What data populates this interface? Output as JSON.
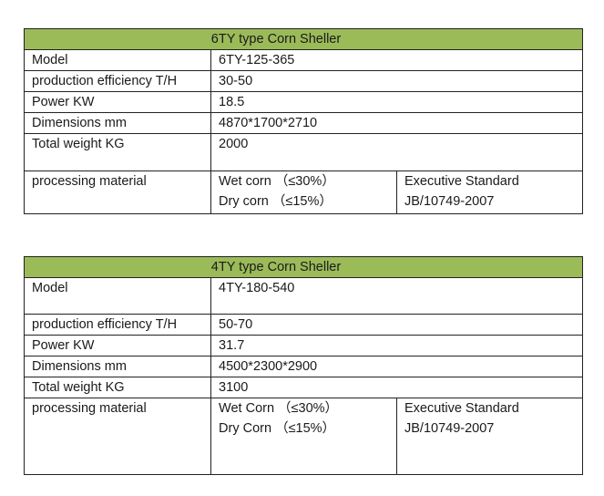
{
  "tables": [
    {
      "title": "6TY type Corn Sheller",
      "rows": [
        {
          "label": "Model",
          "value": "6TY-125-365"
        },
        {
          "label": "production efficiency T/H",
          "value": "30-50"
        },
        {
          "label": "Power KW",
          "value": "18.5"
        },
        {
          "label": "Dimensions mm",
          "value": "4870*1700*2710"
        },
        {
          "label": "Total weight KG",
          "value": "2000"
        }
      ],
      "processing": {
        "label": "processing material",
        "materials": "Wet corn （≤30%）\nDry corn （≤15%）",
        "standard": "Executive Standard\nJB/10749-2007"
      }
    },
    {
      "title": "4TY type Corn Sheller",
      "rows": [
        {
          "label": "Model",
          "value": "4TY-180-540"
        },
        {
          "label": "production efficiency T/H",
          "value": "50-70"
        },
        {
          "label": "Power KW",
          "value": "31.7"
        },
        {
          "label": "Dimensions mm",
          "value": "4500*2300*2900"
        },
        {
          "label": "Total weight KG",
          "value": "3100"
        }
      ],
      "processing": {
        "label": "processing material",
        "materials": "Wet Corn （≤30%）\nDry Corn （≤15%）",
        "standard": "Executive Standard\nJB/10749-2007"
      }
    }
  ]
}
